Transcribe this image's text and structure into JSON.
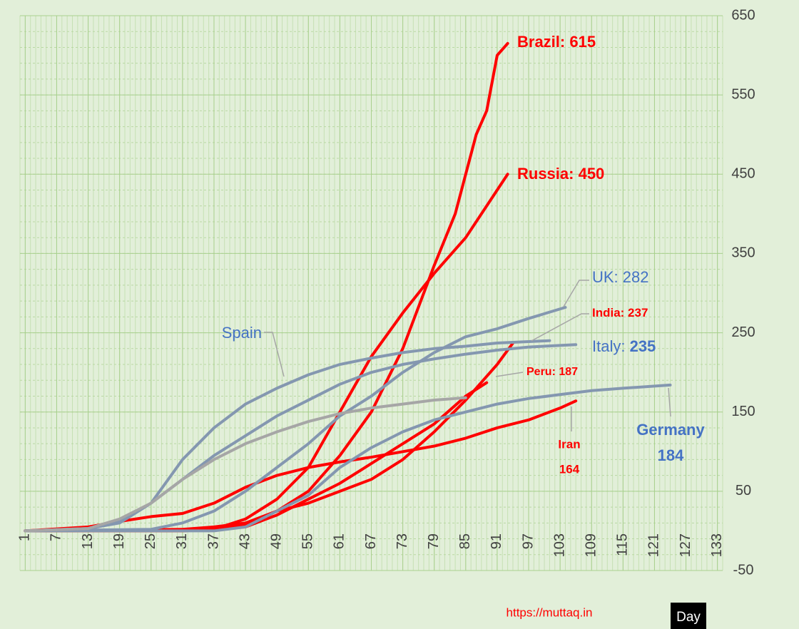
{
  "chart_data": {
    "type": "line",
    "xlim": [
      0,
      134
    ],
    "ylim": [
      -50,
      650
    ],
    "xticks": [
      1,
      7,
      13,
      19,
      25,
      31,
      37,
      43,
      49,
      55,
      61,
      67,
      73,
      79,
      85,
      91,
      97,
      103,
      109,
      115,
      121,
      127,
      133
    ],
    "yticks": [
      -50,
      50,
      150,
      250,
      350,
      450,
      550,
      650
    ],
    "grid": true,
    "x_label": "Day",
    "source": "https://muttaq.in",
    "series": [
      {
        "color": "#ff0000",
        "label_color": "#ff0000",
        "label": [
          "Brazil: 615"
        ],
        "x": [
          1,
          31,
          37,
          43,
          49,
          55,
          61,
          67,
          73,
          79,
          83,
          87,
          89,
          91,
          93
        ],
        "values": [
          0,
          0,
          2,
          8,
          25,
          50,
          95,
          150,
          230,
          335,
          400,
          500,
          530,
          600,
          615
        ]
      },
      {
        "color": "#ff0000",
        "label_color": "#ff0000",
        "label": [
          "Russia: 450"
        ],
        "x": [
          1,
          31,
          37,
          43,
          49,
          55,
          61,
          67,
          73,
          79,
          85,
          91,
          93
        ],
        "values": [
          0,
          0,
          2,
          15,
          40,
          80,
          150,
          220,
          275,
          325,
          370,
          430,
          450
        ]
      },
      {
        "color": "#ff0000",
        "label_color": "#ff0000",
        "label": [
          "India: 237"
        ],
        "x": [
          1,
          31,
          37,
          43,
          49,
          55,
          61,
          67,
          73,
          79,
          85,
          91,
          94
        ],
        "values": [
          0,
          2,
          5,
          10,
          25,
          35,
          50,
          65,
          90,
          125,
          165,
          210,
          237
        ]
      },
      {
        "color": "#ff0000",
        "label_color": "#ff0000",
        "label": [
          "Peru: 187"
        ],
        "x": [
          1,
          37,
          43,
          49,
          55,
          61,
          67,
          73,
          79,
          85,
          89
        ],
        "values": [
          0,
          2,
          5,
          20,
          40,
          60,
          85,
          110,
          135,
          170,
          187
        ]
      },
      {
        "color": "#ff0000",
        "label_color": "#ff0000",
        "label": [
          "Iran",
          "164"
        ],
        "x": [
          1,
          13,
          19,
          25,
          31,
          37,
          43,
          49,
          55,
          61,
          67,
          73,
          79,
          85,
          91,
          97,
          103,
          106
        ],
        "values": [
          0,
          5,
          12,
          18,
          22,
          35,
          55,
          70,
          80,
          87,
          93,
          100,
          107,
          117,
          130,
          140,
          155,
          164
        ]
      },
      {
        "color": "#8497b0",
        "label_color": "#4472c4",
        "label": [
          "UK: 282"
        ],
        "x": [
          1,
          25,
          31,
          37,
          43,
          49,
          55,
          61,
          67,
          73,
          79,
          85,
          91,
          97,
          104
        ],
        "values": [
          0,
          2,
          10,
          25,
          50,
          80,
          110,
          145,
          170,
          200,
          225,
          245,
          255,
          268,
          282
        ]
      },
      {
        "color": "#8497b0",
        "label_color": "#4472c4",
        "label": [
          "Italy: ",
          "235"
        ],
        "x": [
          1,
          13,
          19,
          25,
          31,
          37,
          43,
          49,
          55,
          61,
          67,
          73,
          79,
          85,
          91,
          97,
          106
        ],
        "values": [
          0,
          3,
          12,
          35,
          65,
          95,
          120,
          145,
          165,
          185,
          200,
          210,
          217,
          223,
          228,
          232,
          235
        ]
      },
      {
        "color": "#8497b0",
        "label_color": "#4472c4",
        "label": [
          "Spain"
        ],
        "x": [
          1,
          13,
          19,
          25,
          31,
          37,
          43,
          49,
          55,
          61,
          67,
          73,
          79,
          85,
          91,
          101
        ],
        "values": [
          0,
          3,
          10,
          35,
          90,
          130,
          160,
          180,
          197,
          210,
          218,
          225,
          230,
          233,
          237,
          240
        ]
      },
      {
        "color": "#8497b0",
        "label_color": "#4472c4",
        "label": [
          "Germany",
          "184"
        ],
        "x": [
          1,
          37,
          43,
          49,
          55,
          61,
          67,
          73,
          79,
          85,
          91,
          97,
          103,
          109,
          115,
          124
        ],
        "values": [
          0,
          0,
          5,
          25,
          45,
          80,
          105,
          125,
          140,
          150,
          160,
          167,
          172,
          177,
          180,
          184
        ]
      },
      {
        "color": "#a6a6a6",
        "x": [
          1,
          13,
          19,
          25,
          31,
          37,
          43,
          49,
          55,
          61,
          67,
          73,
          79,
          85
        ],
        "values": [
          0,
          3,
          15,
          35,
          65,
          90,
          110,
          125,
          138,
          148,
          155,
          160,
          165,
          168
        ]
      }
    ]
  }
}
